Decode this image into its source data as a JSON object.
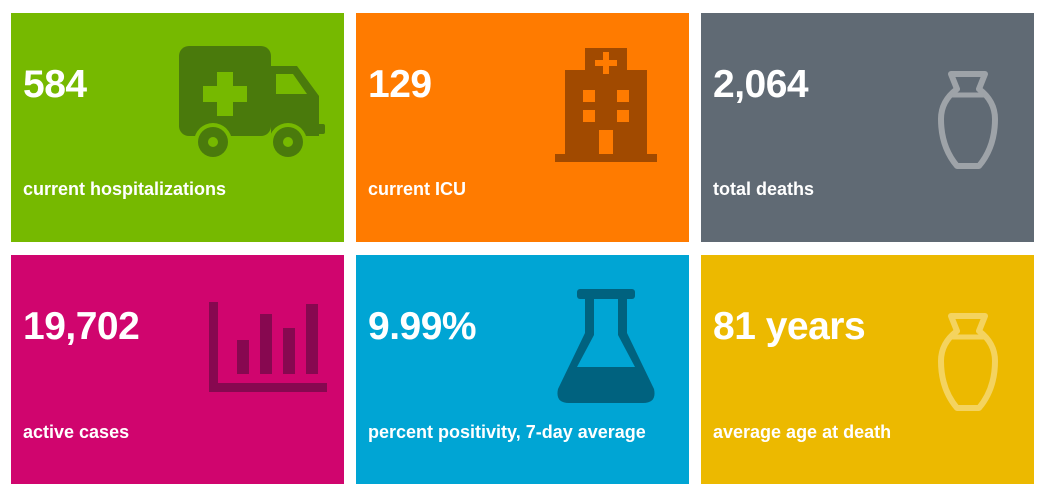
{
  "tiles": [
    {
      "value": "584",
      "label": "current hospitalizations",
      "icon": "ambulance-icon",
      "bg": "#76b900",
      "icon_color": "#4a7a0c"
    },
    {
      "value": "129",
      "label": "current ICU",
      "icon": "hospital-icon",
      "bg": "#ff7b00",
      "icon_color": "#a14a00"
    },
    {
      "value": "2,064",
      "label": "total deaths",
      "icon": "urn-icon",
      "bg": "#606a74",
      "icon_color": "#9ea3a8"
    },
    {
      "value": "19,702",
      "label": "active cases",
      "icon": "bar-chart-icon",
      "bg": "#d0056e",
      "icon_color": "#870850"
    },
    {
      "value": "9.99%",
      "label": "percent positivity, 7-day average",
      "icon": "flask-icon",
      "bg": "#00a5d4",
      "icon_color": "#00627f"
    },
    {
      "value": "81 years",
      "label": "average age at death",
      "icon": "urn-icon",
      "bg": "#ecb900",
      "icon_color": "#f4d35f"
    }
  ]
}
